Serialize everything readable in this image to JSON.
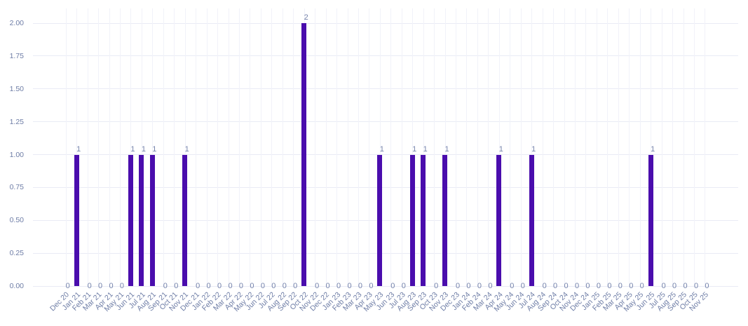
{
  "chart_data": {
    "type": "bar",
    "title": "",
    "xlabel": "",
    "ylabel": "",
    "legend": false,
    "grid": true,
    "ylim": [
      0,
      2
    ],
    "bar_color": "#4a0dad",
    "axis_label_color": "#6e7da6",
    "value_label_color": "#7482ab",
    "grid_color": "#e9ebf5",
    "background_color": "#ffffff",
    "y_ticks": [
      {
        "label": "0.00",
        "value": 0
      },
      {
        "label": "0.25",
        "value": 0.25
      },
      {
        "label": "0.50",
        "value": 0.5
      },
      {
        "label": "0.75",
        "value": 0.75
      },
      {
        "label": "1.00",
        "value": 1
      },
      {
        "label": "1.25",
        "value": 1.25
      },
      {
        "label": "1.50",
        "value": 1.5
      },
      {
        "label": "1.75",
        "value": 1.75
      },
      {
        "label": "2.00",
        "value": 2
      }
    ],
    "categories": [
      "Dec 20",
      "Jan 21",
      "Feb 21",
      "Mar 21",
      "Apr 21",
      "May 21",
      "Jun 21",
      "Jul 21",
      "Aug 21",
      "Sep 21",
      "Oct 21",
      "Nov 21",
      "Dec 21",
      "Jan 22",
      "Feb 22",
      "Mar 22",
      "Apr 22",
      "May 22",
      "Jun 22",
      "Jul 22",
      "Aug 22",
      "Sep 22",
      "Oct 22",
      "Nov 22",
      "Dec 22",
      "Jan 23",
      "Feb 23",
      "Mar 23",
      "Apr 23",
      "May 23",
      "Jun 23",
      "Jul 23",
      "Aug 23",
      "Sep 23",
      "Oct 23",
      "Nov 23",
      "Dec 23",
      "Jan 24",
      "Feb 24",
      "Mar 24",
      "Apr 24",
      "May 24",
      "Jun 24",
      "Jul 24",
      "Aug 24",
      "Sep 24",
      "Oct 24",
      "Nov 24",
      "Dec 24",
      "Jan 25",
      "Feb 25",
      "Mar 25",
      "Apr 25",
      "May 25",
      "Jun 25",
      "Jul 25",
      "Aug 25",
      "Sep 25",
      "Oct 25",
      "Nov 25"
    ],
    "values": [
      0,
      1,
      0,
      0,
      0,
      0,
      1,
      1,
      1,
      0,
      0,
      1,
      0,
      0,
      0,
      0,
      0,
      0,
      0,
      0,
      0,
      0,
      2,
      0,
      0,
      0,
      0,
      0,
      0,
      1,
      0,
      0,
      1,
      1,
      0,
      1,
      0,
      0,
      0,
      0,
      1,
      0,
      0,
      1,
      0,
      0,
      0,
      0,
      0,
      0,
      0,
      0,
      0,
      0,
      1,
      0,
      0,
      0,
      0,
      0
    ]
  }
}
